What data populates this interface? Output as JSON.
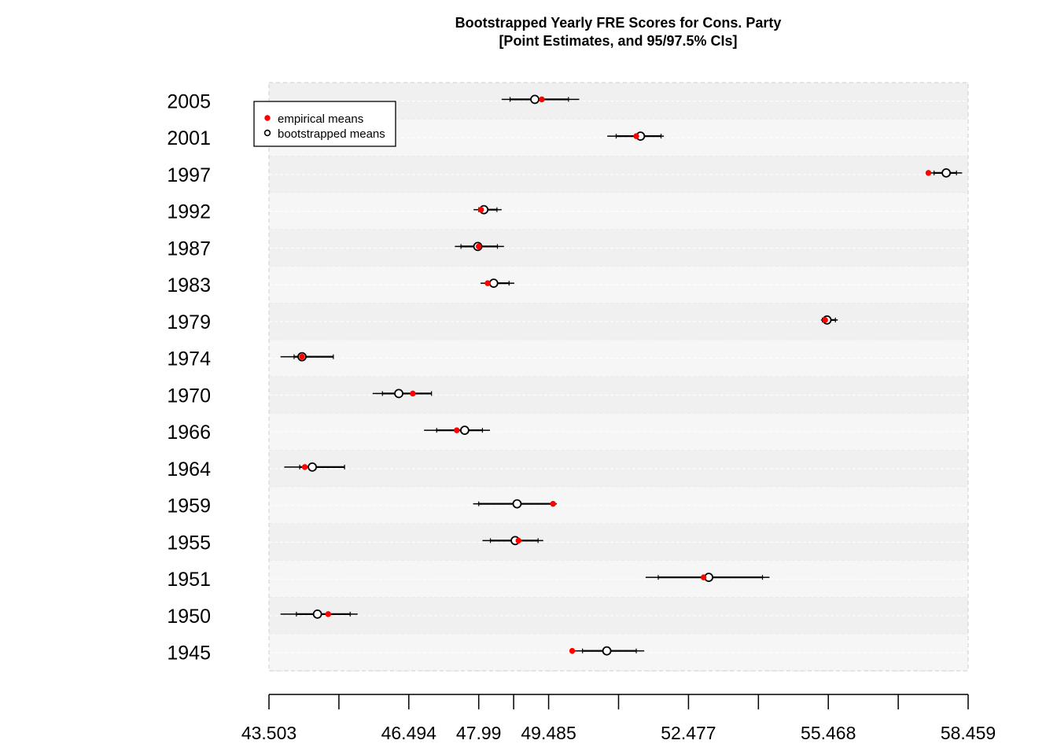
{
  "chart_data": {
    "type": "dot-errorbar",
    "title": [
      "Bootstrapped Yearly FRE Scores for Cons. Party",
      "[Point Estimates, and 95/97.5% CIs]"
    ],
    "xlim": [
      43.503,
      58.459
    ],
    "x_tick_labels": [
      "43.503",
      "46.494",
      "47.99",
      "49.485",
      "52.477",
      "55.468",
      "58.459"
    ],
    "x_tick_values": [
      43.503,
      46.494,
      47.99,
      49.485,
      52.477,
      55.468,
      58.459
    ],
    "x_minor_ticks": [
      44.999,
      48.737,
      50.981,
      53.973,
      56.964
    ],
    "legend": {
      "position": "top-left",
      "entries": [
        {
          "label": "empirical means",
          "color": "#ff0000"
        },
        {
          "label": "bootstrapped means",
          "color": "#000000"
        }
      ]
    },
    "categories": [
      "2005",
      "2001",
      "1997",
      "1992",
      "1987",
      "1983",
      "1979",
      "1974",
      "1970",
      "1966",
      "1964",
      "1959",
      "1955",
      "1951",
      "1950",
      "1945"
    ],
    "series": [
      {
        "name": "empirical means",
        "values": [
          49.34,
          51.36,
          57.61,
          48.04,
          47.99,
          48.18,
          55.4,
          44.21,
          46.58,
          47.52,
          44.27,
          49.58,
          48.84,
          52.8,
          44.77,
          49.99
        ]
      },
      {
        "name": "bootstrapped means",
        "values": [
          49.19,
          51.45,
          57.99,
          48.1,
          47.97,
          48.31,
          55.44,
          44.21,
          46.28,
          47.69,
          44.43,
          48.81,
          48.77,
          52.91,
          44.54,
          50.73
        ]
      }
    ],
    "ci_95": [
      [
        48.66,
        49.91
      ],
      [
        50.93,
        51.89
      ],
      [
        57.73,
        58.21
      ],
      [
        47.99,
        48.38
      ],
      [
        47.61,
        48.39
      ],
      [
        48.16,
        48.64
      ],
      [
        55.34,
        55.62
      ],
      [
        44.04,
        44.88
      ],
      [
        45.93,
        46.98
      ],
      [
        47.09,
        48.07
      ],
      [
        44.16,
        45.12
      ],
      [
        47.99,
        49.56
      ],
      [
        48.24,
        49.26
      ],
      [
        51.83,
        54.06
      ],
      [
        44.09,
        45.24
      ],
      [
        50.21,
        51.36
      ]
    ],
    "ci_975": [
      [
        48.48,
        50.14
      ],
      [
        50.74,
        51.95
      ],
      [
        57.6,
        58.33
      ],
      [
        47.88,
        48.48
      ],
      [
        47.48,
        48.53
      ],
      [
        48.03,
        48.75
      ],
      [
        55.31,
        55.67
      ],
      [
        43.75,
        44.69
      ],
      [
        45.72,
        46.81
      ],
      [
        46.82,
        48.23
      ],
      [
        43.83,
        45.05
      ],
      [
        47.87,
        49.66
      ],
      [
        48.07,
        49.37
      ],
      [
        51.56,
        54.21
      ],
      [
        43.75,
        45.4
      ],
      [
        50.04,
        51.53
      ]
    ]
  }
}
